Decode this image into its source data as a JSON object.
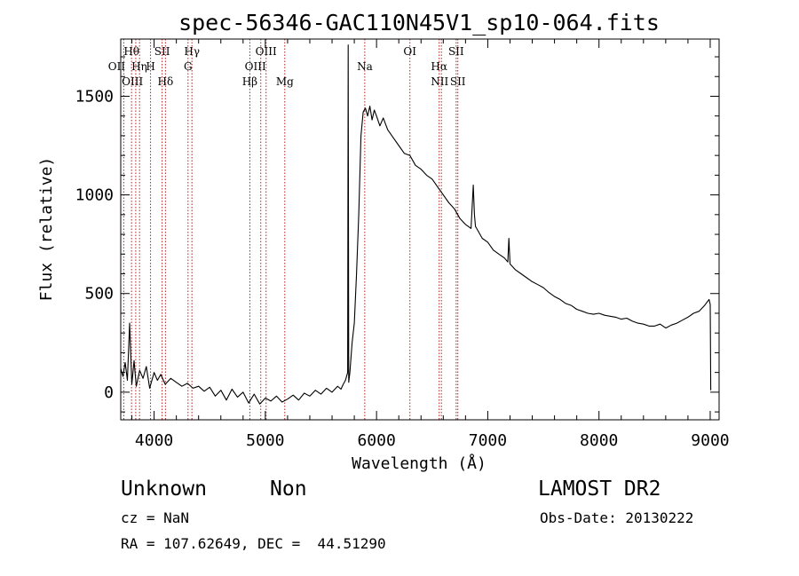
{
  "chart_data": {
    "type": "line",
    "title": "spec-56346-GAC110N45V1_sp10-064.fits",
    "xlabel": "Wavelength (Å)",
    "ylabel": "Flux (relative)",
    "xlim": [
      3700,
      9080
    ],
    "ylim": [
      -140,
      1790
    ],
    "xticks": [
      {
        "v": 4000,
        "label": "4000"
      },
      {
        "v": 5000,
        "label": "5000"
      },
      {
        "v": 6000,
        "label": "6000"
      },
      {
        "v": 7000,
        "label": "7000"
      },
      {
        "v": 8000,
        "label": "8000"
      },
      {
        "v": 9000,
        "label": "9000"
      }
    ],
    "yticks": [
      {
        "v": 0,
        "label": "0"
      },
      {
        "v": 500,
        "label": "500"
      },
      {
        "v": 1000,
        "label": "1000"
      },
      {
        "v": 1500,
        "label": "1500"
      }
    ],
    "series": [
      {
        "color": "#000000",
        "x": [
          3700,
          3720,
          3740,
          3760,
          3780,
          3800,
          3820,
          3840,
          3870,
          3900,
          3930,
          3960,
          4000,
          4030,
          4060,
          4100,
          4150,
          4200,
          4250,
          4300,
          4350,
          4400,
          4450,
          4500,
          4550,
          4600,
          4650,
          4700,
          4750,
          4800,
          4850,
          4900,
          4950,
          5000,
          5050,
          5100,
          5150,
          5200,
          5250,
          5300,
          5350,
          5400,
          5450,
          5500,
          5550,
          5600,
          5650,
          5680,
          5700,
          5720,
          5740,
          5745,
          5750,
          5760,
          5780,
          5800,
          5820,
          5840,
          5860,
          5880,
          5900,
          5920,
          5940,
          5960,
          5980,
          6000,
          6030,
          6060,
          6100,
          6150,
          6200,
          6250,
          6300,
          6350,
          6400,
          6450,
          6500,
          6550,
          6600,
          6650,
          6700,
          6750,
          6800,
          6850,
          6870,
          6880,
          6890,
          6900,
          6950,
          7000,
          7050,
          7100,
          7150,
          7180,
          7190,
          7200,
          7250,
          7300,
          7350,
          7400,
          7450,
          7500,
          7550,
          7600,
          7650,
          7700,
          7750,
          7800,
          7850,
          7900,
          7950,
          8000,
          8050,
          8100,
          8150,
          8200,
          8250,
          8300,
          8350,
          8400,
          8450,
          8500,
          8550,
          8600,
          8650,
          8700,
          8750,
          8800,
          8850,
          8900,
          8950,
          8990,
          9000,
          9005
        ],
        "y": [
          120,
          80,
          150,
          60,
          350,
          40,
          160,
          30,
          110,
          70,
          130,
          20,
          100,
          60,
          90,
          40,
          70,
          50,
          30,
          45,
          20,
          30,
          5,
          25,
          -20,
          10,
          -40,
          15,
          -25,
          0,
          -55,
          -10,
          -60,
          -30,
          -45,
          -20,
          -50,
          -35,
          -15,
          -40,
          -5,
          -20,
          10,
          -10,
          20,
          0,
          30,
          15,
          40,
          60,
          100,
          1760,
          50,
          100,
          250,
          350,
          600,
          900,
          1300,
          1420,
          1440,
          1400,
          1450,
          1380,
          1430,
          1400,
          1350,
          1390,
          1330,
          1290,
          1250,
          1210,
          1200,
          1150,
          1130,
          1100,
          1080,
          1040,
          1000,
          960,
          930,
          880,
          850,
          830,
          1050,
          900,
          840,
          830,
          780,
          760,
          720,
          700,
          680,
          660,
          780,
          650,
          620,
          600,
          580,
          560,
          545,
          530,
          505,
          485,
          470,
          450,
          440,
          420,
          410,
          400,
          395,
          400,
          390,
          385,
          380,
          370,
          375,
          360,
          350,
          345,
          335,
          335,
          345,
          325,
          340,
          350,
          365,
          380,
          400,
          410,
          440,
          470,
          445,
          10
        ]
      }
    ],
    "lines": [
      {
        "name": "Hθ",
        "x": 3797
      },
      {
        "name": "OII",
        "x": 3727
      },
      {
        "name": "OIII",
        "x": 3869
      },
      {
        "name": "Hη",
        "x": 3835
      },
      {
        "name": "H",
        "x": 3968
      },
      {
        "name": "SII",
        "x": 4072
      },
      {
        "name": "Hδ",
        "x": 4102
      },
      {
        "name": "Hγ",
        "x": 4340
      },
      {
        "name": "G",
        "x": 4305
      },
      {
        "name": "Hβ",
        "x": 4861
      },
      {
        "name": "OIII",
        "x": 5007
      },
      {
        "name": "OIII",
        "x": 4959
      },
      {
        "name": "Mg",
        "x": 5175
      },
      {
        "name": "Na",
        "x": 5894
      },
      {
        "name": "OI",
        "x": 6300
      },
      {
        "name": "Hα",
        "x": 6563
      },
      {
        "name": "NII",
        "x": 6583
      },
      {
        "name": "SII",
        "x": 6716
      },
      {
        "name": "SII",
        "x": 6731
      }
    ]
  },
  "info": {
    "class": "Unknown",
    "subclass": "Non",
    "survey": "LAMOST DR2",
    "cz": "cz = NaN",
    "obs_date": "Obs-Date: 20130222",
    "coords": "RA = 107.62649, DEC =  44.51290"
  }
}
